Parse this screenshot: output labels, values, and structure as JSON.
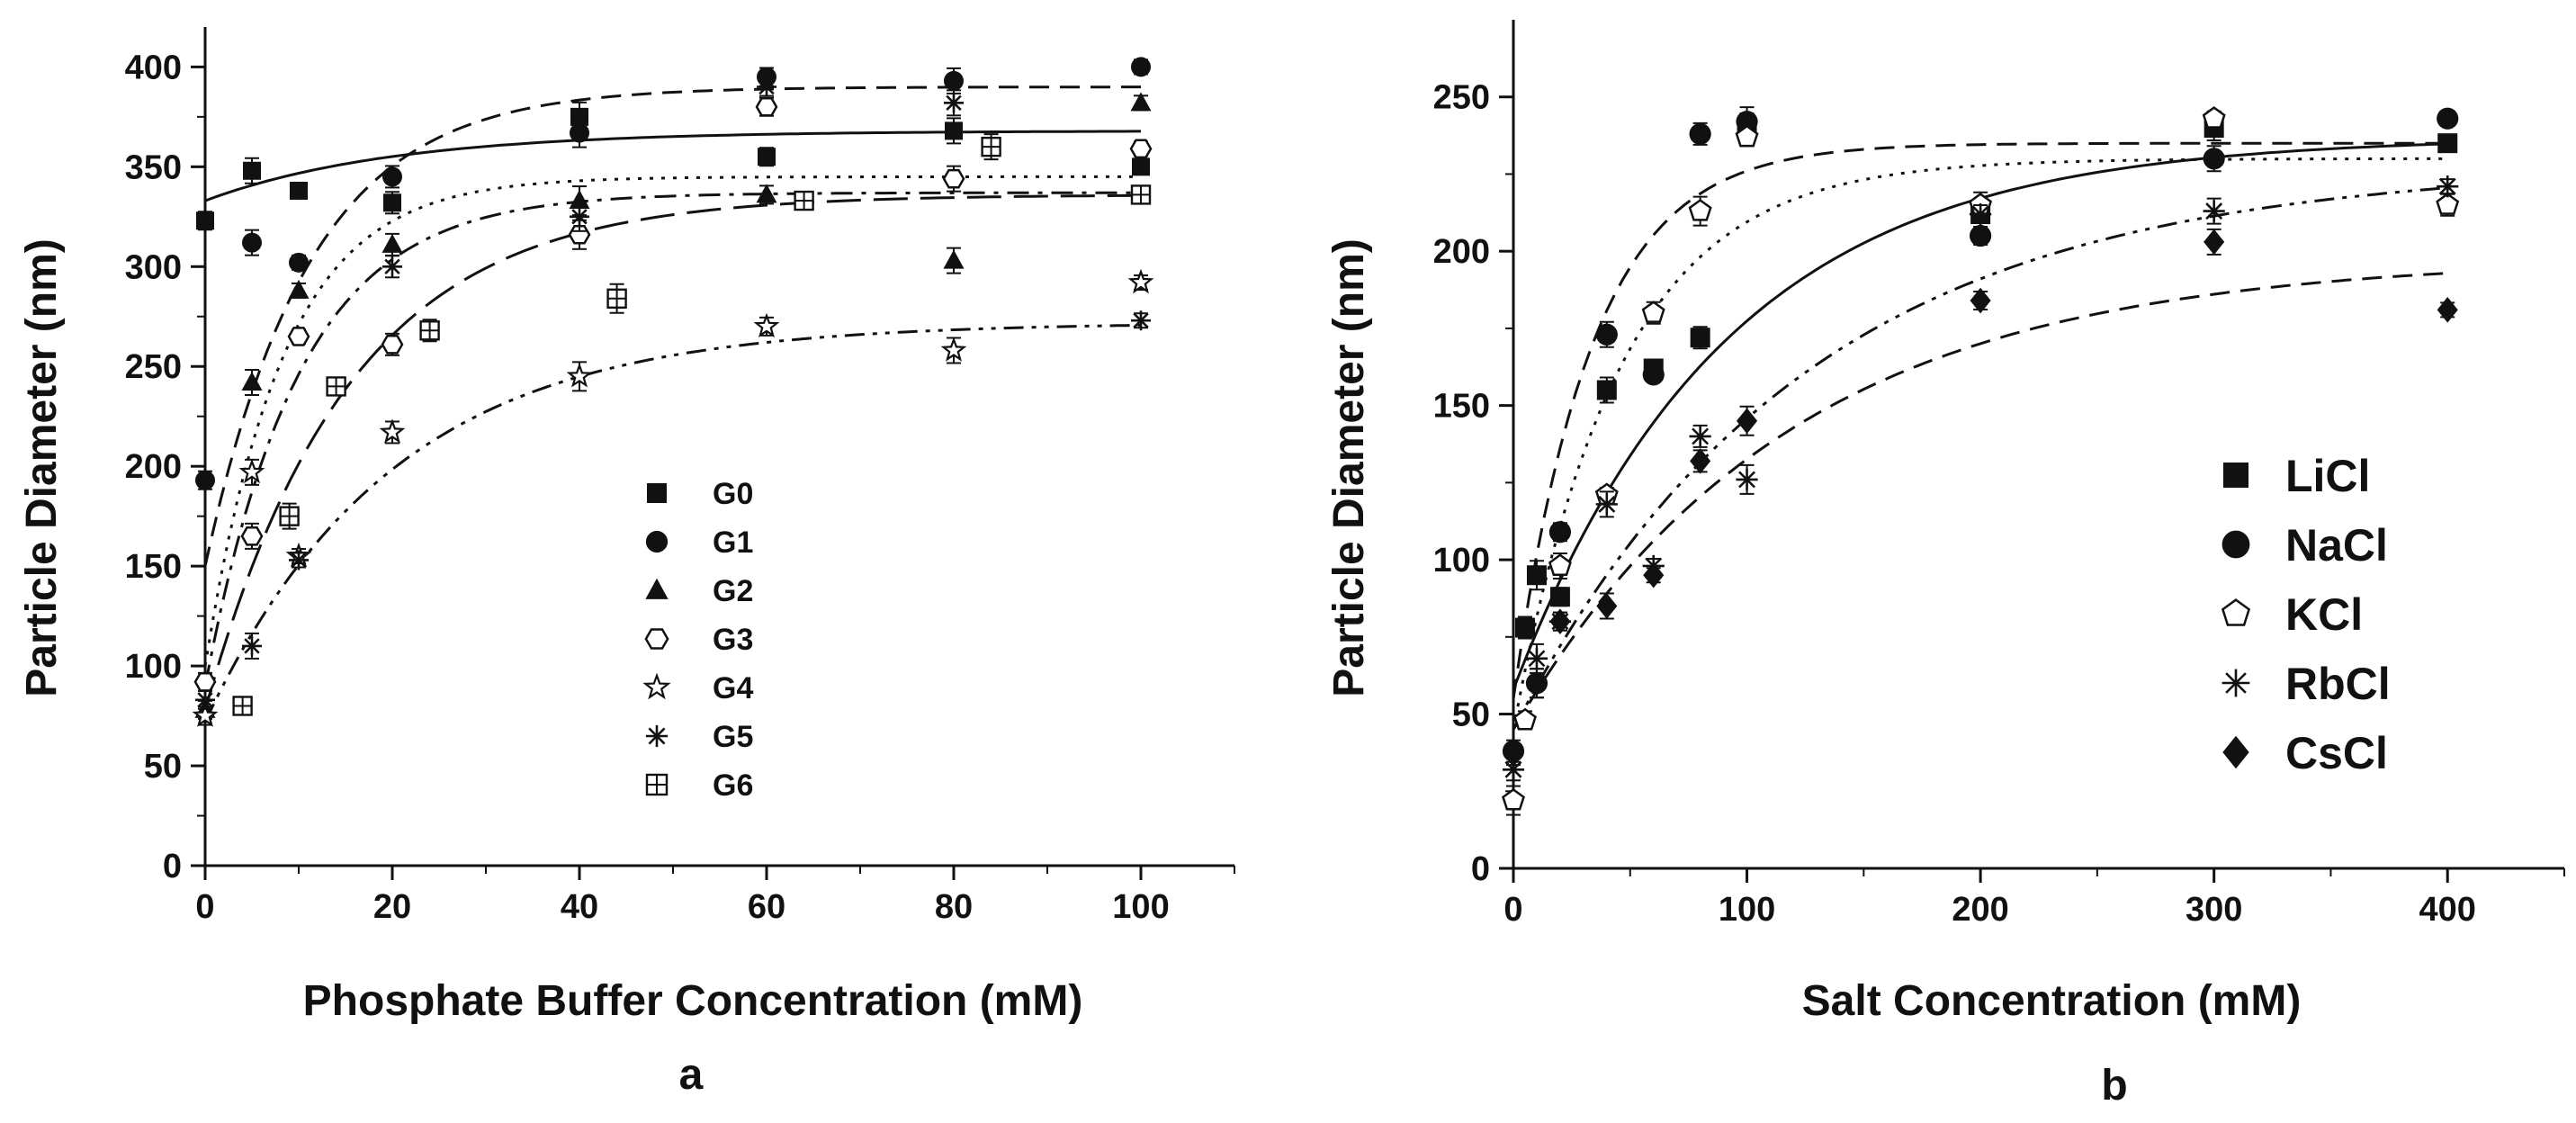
{
  "chart_data": [
    {
      "panel_label": "a",
      "type": "scatter",
      "xlabel": "Phosphate Buffer Concentration (mM)",
      "ylabel": "Particle Diameter (nm)",
      "xlim": [
        0,
        110
      ],
      "ylim": [
        0,
        420
      ],
      "xticks": [
        0,
        20,
        40,
        60,
        80,
        100
      ],
      "yticks": [
        0,
        50,
        100,
        150,
        200,
        250,
        300,
        350,
        400
      ],
      "legend_position": "center",
      "series": [
        {
          "name": "G0",
          "marker": "square",
          "x": [
            0,
            5,
            10,
            20,
            40,
            60,
            80,
            100
          ],
          "y": [
            323,
            348,
            338,
            332,
            375,
            355,
            368,
            350
          ],
          "fit": {
            "style": "solid",
            "y0": 333,
            "ymax": 368,
            "k": 0.05
          }
        },
        {
          "name": "G1",
          "marker": "circle",
          "x": [
            0,
            5,
            10,
            20,
            40,
            60,
            80,
            100
          ],
          "y": [
            193,
            312,
            302,
            345,
            367,
            395,
            393,
            400
          ],
          "fit": {
            "style": "dash",
            "y0": 150,
            "ymax": 390,
            "k": 0.09
          }
        },
        {
          "name": "G2",
          "marker": "triangle",
          "x": [
            0,
            5,
            10,
            20,
            40,
            60,
            80,
            100
          ],
          "y": [
            78,
            242,
            288,
            311,
            333,
            336,
            303,
            382
          ],
          "fit": {
            "style": "dashdot",
            "y0": 90,
            "ymax": 337,
            "k": 0.1
          }
        },
        {
          "name": "G3",
          "marker": "hexagon",
          "x": [
            0,
            5,
            10,
            20,
            40,
            60,
            80,
            100
          ],
          "y": [
            92,
            165,
            265,
            261,
            316,
            380,
            344,
            359
          ],
          "fit": {
            "style": "dot",
            "y0": 100,
            "ymax": 345,
            "k": 0.12
          }
        },
        {
          "name": "G4",
          "marker": "star",
          "x": [
            0,
            5,
            10,
            20,
            40,
            60,
            80,
            100
          ],
          "y": [
            75,
            197,
            155,
            217,
            245,
            270,
            258,
            292
          ],
          "fit": {
            "style": "dashdotdot",
            "y0": 72,
            "ymax": 272,
            "k": 0.05
          }
        },
        {
          "name": "G5",
          "marker": "asterisk",
          "x": [
            0,
            5,
            10,
            20,
            40,
            60,
            80,
            100
          ],
          "y": [
            83,
            110,
            153,
            300,
            325,
            390,
            382,
            273
          ],
          "fit": {
            "style": "longdash",
            "y0": 78,
            "ymax": 336,
            "k": 0.065
          }
        },
        {
          "name": "G6",
          "marker": "boxplus",
          "x": [
            4,
            9,
            14,
            24,
            44,
            64,
            84,
            100
          ],
          "y": [
            80,
            175,
            240,
            268,
            284,
            333,
            360,
            336
          ],
          "fit": null
        }
      ]
    },
    {
      "panel_label": "b",
      "type": "scatter",
      "xlabel": "Salt Concentration (mM)",
      "ylabel": "Particle Diameter (nm)",
      "xlim": [
        0,
        450
      ],
      "ylim": [
        0,
        275
      ],
      "xticks": [
        0,
        100,
        200,
        300,
        400
      ],
      "yticks": [
        0,
        50,
        100,
        150,
        200,
        250
      ],
      "legend_position": "right",
      "series": [
        {
          "name": "LiCl",
          "marker": "square",
          "x": [
            5,
            10,
            20,
            40,
            60,
            80,
            100,
            200,
            300,
            400
          ],
          "y": [
            78,
            95,
            88,
            155,
            162,
            172,
            240,
            212,
            240,
            235
          ],
          "fit": {
            "style": "solid",
            "y0": 58,
            "ymax": 237,
            "k": 0.011
          }
        },
        {
          "name": "NaCl",
          "marker": "circle",
          "x": [
            0,
            10,
            20,
            40,
            60,
            80,
            100,
            200,
            300,
            400
          ],
          "y": [
            38,
            60,
            109,
            173,
            160,
            238,
            242,
            205,
            230,
            243
          ],
          "fit": {
            "style": "dash",
            "y0": 55,
            "ymax": 235,
            "k": 0.03
          }
        },
        {
          "name": "KCl",
          "marker": "pentagon",
          "x": [
            0,
            5,
            20,
            40,
            60,
            80,
            100,
            200,
            300,
            400
          ],
          "y": [
            22,
            48,
            98,
            121,
            180,
            213,
            237,
            215,
            243,
            215
          ],
          "fit": {
            "style": "dot",
            "y0": 45,
            "ymax": 230,
            "k": 0.022
          }
        },
        {
          "name": "RbCl",
          "marker": "asterisk",
          "x": [
            0,
            10,
            20,
            40,
            60,
            80,
            100,
            200,
            300,
            400
          ],
          "y": [
            32,
            68,
            80,
            118,
            98,
            140,
            126,
            212,
            213,
            221
          ],
          "fit": {
            "style": "dashdotdot",
            "y0": 45,
            "ymax": 228,
            "k": 0.008
          }
        },
        {
          "name": "CsCl",
          "marker": "diamond",
          "x": [
            0,
            10,
            20,
            40,
            60,
            80,
            100,
            200,
            300,
            400
          ],
          "y": [
            37,
            60,
            80,
            85,
            95,
            132,
            145,
            184,
            203,
            181
          ],
          "fit": {
            "style": "dash",
            "y0": 45,
            "ymax": 198,
            "k": 0.0085
          }
        }
      ]
    }
  ]
}
